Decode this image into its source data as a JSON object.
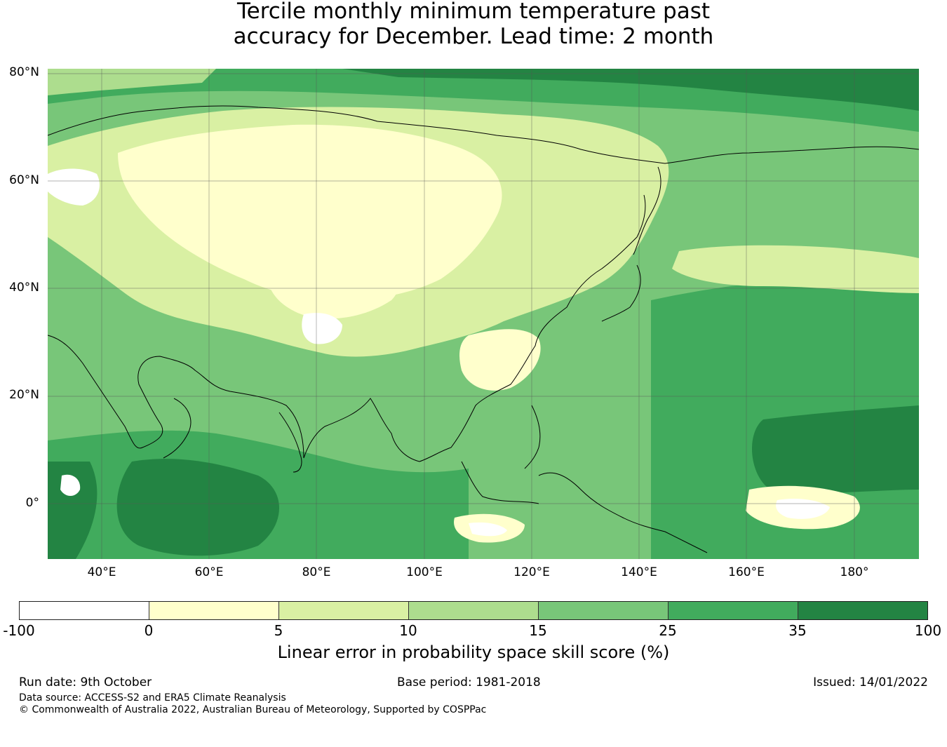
{
  "title": {
    "line1": "Tercile monthly minimum temperature past",
    "line2": "accuracy for December. Lead time: 2 month"
  },
  "map": {
    "lat_labels": [
      "80°N",
      "60°N",
      "40°N",
      "20°N",
      "0°"
    ],
    "lon_labels": [
      "40°E",
      "60°E",
      "80°E",
      "100°E",
      "120°E",
      "140°E",
      "160°E",
      "180°"
    ],
    "colors": {
      "c_neg": "#ffffff",
      "c0_5": "#ffffcc",
      "c5_10": "#d9f0a3",
      "c10_15": "#addd8e",
      "c15_25": "#78c679",
      "c25_35": "#41ab5d",
      "c35_100": "#238443",
      "coast": "#000000",
      "grid": "#555555"
    }
  },
  "colorbar": {
    "ticks": [
      "-100",
      "0",
      "5",
      "10",
      "15",
      "25",
      "35",
      "100"
    ],
    "segment_colors": [
      "#ffffff",
      "#ffffcc",
      "#d9f0a3",
      "#addd8e",
      "#78c679",
      "#41ab5d",
      "#238443"
    ],
    "label": "Linear error in probability space skill score (%)"
  },
  "footer": {
    "run_date": "Run date: 9th October",
    "base_period": "Base period: 1981-2018",
    "issued": "Issued: 14/01/2022",
    "data_source": "Data source: ACCESS-S2 and ERA5 Climate Reanalysis",
    "copyright": "© Commonwealth of Australia 2022, Australian Bureau of Meteorology, Supported by COSPPac"
  }
}
